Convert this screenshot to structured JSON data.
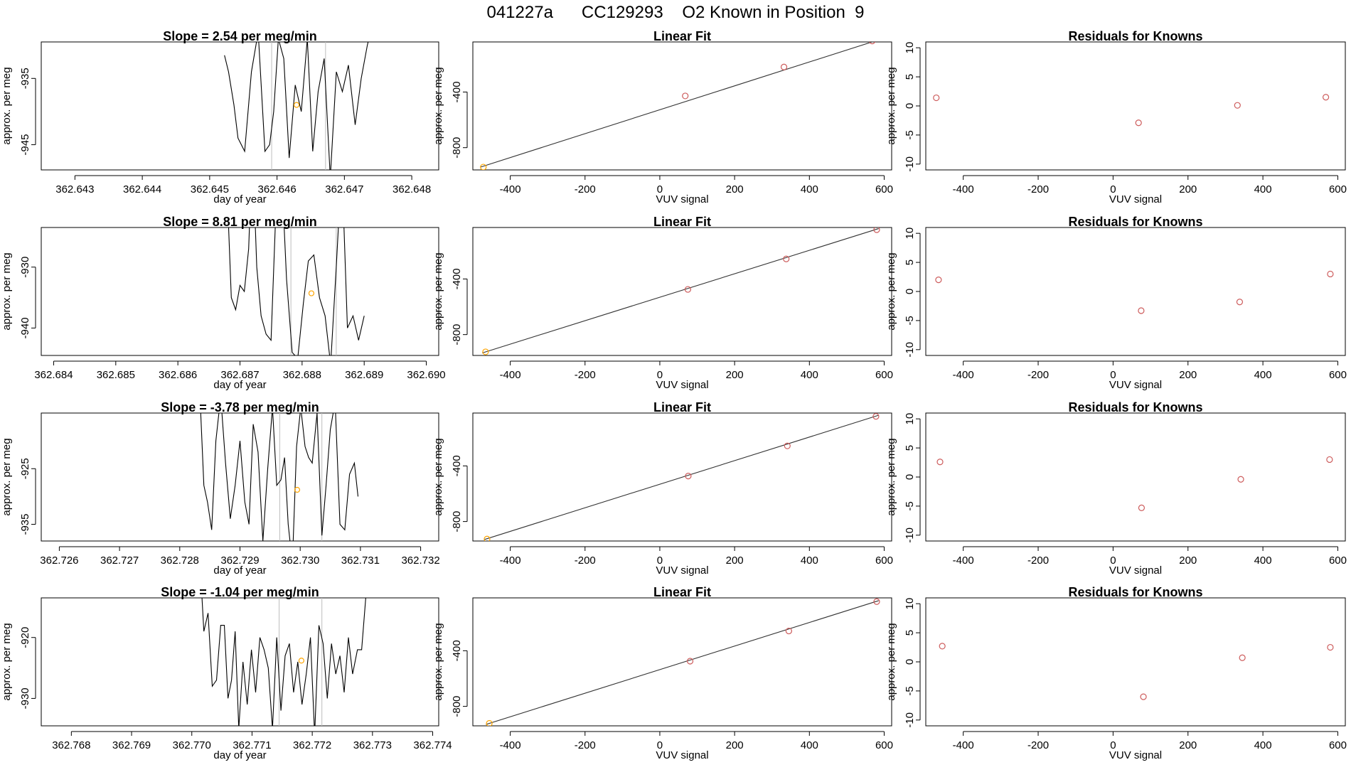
{
  "page_title": "041227a      CC129293    O2 Known in Position  9",
  "colors": {
    "trace": "#000000",
    "marker_orange": "#ffa500",
    "marker_red": "#cd5c5c",
    "fit_point": "#cd5c5c",
    "guide_line": "#bebebe",
    "fit_line": "#333333"
  },
  "chart_data": [
    {
      "row": 1,
      "time_panel": {
        "type": "line",
        "title": "Slope =  2.54  per meg/min",
        "xlabel": "day of year",
        "ylabel": "approx. per meg",
        "xlim": [
          362.6425,
          362.6484
        ],
        "ylim": [
          -948.8,
          -929.5
        ],
        "x_ticks": [
          362.643,
          362.644,
          362.645,
          362.646,
          362.647,
          362.648
        ],
        "x_tick_labels": [
          "362.643",
          "362.644",
          "362.645",
          "362.646",
          "362.647",
          "362.648"
        ],
        "y_ticks": [
          -935,
          -945
        ],
        "y_tick_labels": [
          "-935",
          "-945"
        ],
        "vlines": [
          362.64592,
          362.64672
        ],
        "marker": {
          "x": 362.64629,
          "y": -939
        },
        "series": {
          "x": [
            362.64522,
            362.64528,
            362.64536,
            362.64542,
            362.64552,
            362.64562,
            362.64572,
            362.64582,
            362.64589,
            362.64595,
            362.64602,
            362.6461,
            362.64618,
            362.64627,
            362.64636,
            362.64645,
            362.64653,
            362.64661,
            362.6467,
            362.64679,
            362.64688,
            362.64697,
            362.64706,
            362.64716,
            362.64725,
            362.64734,
            362.64741
          ],
          "y": [
            -931.5,
            -934,
            -939,
            -944,
            -946,
            -934,
            -928,
            -946,
            -945,
            -940,
            -929,
            -932,
            -947,
            -936,
            -940,
            -929,
            -946,
            -937,
            -932,
            -950,
            -934,
            -937,
            -933,
            -942,
            -935,
            -930,
            -927
          ]
        }
      },
      "fit_panel": {
        "type": "scatter",
        "title": "Linear Fit",
        "xlabel": "VUV signal",
        "ylabel": "approx. per meg",
        "xlim": [
          -500,
          620
        ],
        "ylim": [
          -960,
          -40
        ],
        "x_ticks": [
          -400,
          -200,
          0,
          200,
          400,
          600
        ],
        "x_tick_labels": [
          "-400",
          "-200",
          "0",
          "200",
          "400",
          "600"
        ],
        "y_ticks": [
          -400,
          -800
        ],
        "y_tick_labels": [
          "-400",
          "-800"
        ],
        "points": [
          {
            "x": -472,
            "y": -940,
            "color": "marker_orange"
          },
          {
            "x": 68,
            "y": -428,
            "color": "fit_point"
          },
          {
            "x": 332,
            "y": -220,
            "color": "fit_point"
          },
          {
            "x": 568,
            "y": -33,
            "color": "fit_point"
          }
        ],
        "fit_line": {
          "x": [
            -480,
            585
          ],
          "y": [
            -940,
            -25
          ]
        }
      },
      "resid_panel": {
        "type": "scatter",
        "title": "Residuals for Knowns",
        "xlabel": "VUV signal",
        "ylabel": "approx. per meg",
        "xlim": [
          -500,
          620
        ],
        "ylim": [
          -11,
          11
        ],
        "x_ticks": [
          -400,
          -200,
          0,
          200,
          400,
          600
        ],
        "x_tick_labels": [
          "-400",
          "-200",
          "0",
          "200",
          "400",
          "600"
        ],
        "y_ticks": [
          10,
          5,
          0,
          -5,
          -10
        ],
        "y_tick_labels": [
          "10",
          "5",
          "0",
          "-5",
          "-10"
        ],
        "points": [
          {
            "x": -472,
            "y": 1.4
          },
          {
            "x": 68,
            "y": -2.9
          },
          {
            "x": 332,
            "y": 0.1
          },
          {
            "x": 568,
            "y": 1.5
          }
        ]
      }
    },
    {
      "row": 2,
      "time_panel": {
        "type": "line",
        "title": "Slope =  8.81  per meg/min",
        "xlabel": "day of year",
        "ylabel": "approx. per meg",
        "xlim": [
          362.6838,
          362.6902
        ],
        "ylim": [
          -944.5,
          -923.5
        ],
        "x_ticks": [
          362.684,
          362.685,
          362.686,
          362.687,
          362.688,
          362.689,
          362.69
        ],
        "x_tick_labels": [
          "362.684",
          "362.685",
          "362.686",
          "362.687",
          "362.688",
          "362.689",
          "362.690"
        ],
        "y_ticks": [
          -930,
          -940
        ],
        "y_tick_labels": [
          "-930",
          "-940"
        ],
        "vlines": [
          362.68782,
          362.68855
        ],
        "marker": {
          "x": 362.68815,
          "y": -934.3
        },
        "series": {
          "x": [
            362.6868,
            362.68686,
            362.68693,
            362.687,
            362.68707,
            362.68714,
            362.6872,
            362.68727,
            362.68734,
            362.68742,
            362.6875,
            362.68758,
            362.68766,
            362.68775,
            362.68784,
            362.68793,
            362.68802,
            362.6881,
            362.68819,
            362.68828,
            362.68837,
            362.68846,
            362.68855,
            362.68864,
            362.68873,
            362.68882,
            362.68891,
            362.689
          ],
          "y": [
            -919,
            -935,
            -937,
            -933,
            -934,
            -927,
            -910,
            -930,
            -938,
            -941,
            -942,
            -920,
            -912,
            -932,
            -944,
            -945,
            -936,
            -929,
            -928,
            -935,
            -938,
            -946,
            -930,
            -913,
            -940,
            -938,
            -942,
            -938
          ]
        }
      },
      "fit_panel": {
        "type": "scatter",
        "title": "Linear Fit",
        "xlabel": "VUV signal",
        "ylabel": "approx. per meg",
        "xlim": [
          -500,
          620
        ],
        "ylim": [
          -950,
          -30
        ],
        "x_ticks": [
          -400,
          -200,
          0,
          200,
          400,
          600
        ],
        "x_tick_labels": [
          "-400",
          "-200",
          "0",
          "200",
          "400",
          "600"
        ],
        "y_ticks": [
          -400,
          -800
        ],
        "y_tick_labels": [
          "-400",
          "-800"
        ],
        "points": [
          {
            "x": -466,
            "y": -924,
            "color": "marker_orange"
          },
          {
            "x": 75,
            "y": -475,
            "color": "fit_point"
          },
          {
            "x": 338,
            "y": -256,
            "color": "fit_point"
          },
          {
            "x": 580,
            "y": -46,
            "color": "fit_point"
          }
        ],
        "fit_line": {
          "x": [
            -475,
            585
          ],
          "y": [
            -932,
            -38
          ]
        }
      },
      "resid_panel": {
        "type": "scatter",
        "title": "Residuals for Knowns",
        "xlabel": "VUV signal",
        "ylabel": "approx. per meg",
        "xlim": [
          -500,
          620
        ],
        "ylim": [
          -11,
          11
        ],
        "x_ticks": [
          -400,
          -200,
          0,
          200,
          400,
          600
        ],
        "x_tick_labels": [
          "-400",
          "-200",
          "0",
          "200",
          "400",
          "600"
        ],
        "y_ticks": [
          10,
          5,
          0,
          -5,
          -10
        ],
        "y_tick_labels": [
          "10",
          "5",
          "0",
          "-5",
          "-10"
        ],
        "points": [
          {
            "x": -466,
            "y": 2.0
          },
          {
            "x": 75,
            "y": -3.3
          },
          {
            "x": 338,
            "y": -1.8
          },
          {
            "x": 580,
            "y": 3.0
          }
        ]
      }
    },
    {
      "row": 3,
      "time_panel": {
        "type": "line",
        "title": "Slope =  -3.78  per meg/min",
        "xlabel": "day of year",
        "ylabel": "approx. per meg",
        "xlim": [
          362.7257,
          362.7323
        ],
        "ylim": [
          -938,
          -915
        ],
        "x_ticks": [
          362.726,
          362.727,
          362.728,
          362.729,
          362.73,
          362.731,
          362.732
        ],
        "x_tick_labels": [
          "362.726",
          "362.727",
          "362.728",
          "362.729",
          "362.730",
          "362.731",
          "362.732"
        ],
        "y_ticks": [
          -925,
          -935
        ],
        "y_tick_labels": [
          "-925",
          "-935"
        ],
        "vlines": [
          362.72966,
          362.73036
        ],
        "marker": {
          "x": 362.72995,
          "y": -928.8
        },
        "series": {
          "x": [
            362.72832,
            362.7284,
            362.72846,
            362.72853,
            362.7286,
            362.72868,
            362.72876,
            362.72884,
            362.72892,
            362.729,
            362.72908,
            362.72915,
            362.72922,
            362.7293,
            362.72938,
            362.72946,
            362.72954,
            362.72961,
            362.72968,
            362.72974,
            362.7298,
            362.72987,
            362.72994,
            362.73001,
            362.73008,
            362.73014,
            362.7302,
            362.73028,
            362.73036,
            362.73043,
            362.7305,
            362.73058,
            362.73066,
            362.73074,
            362.73082,
            362.7309,
            362.73096
          ],
          "y": [
            -908,
            -928,
            -931,
            -936,
            -920,
            -912,
            -924,
            -934,
            -928,
            -920,
            -931,
            -935,
            -917,
            -922,
            -938,
            -925,
            -914,
            -928,
            -927,
            -923,
            -935,
            -942,
            -921,
            -914,
            -921,
            -923,
            -924,
            -915,
            -937,
            -928,
            -918,
            -913,
            -935,
            -936,
            -926,
            -924,
            -930
          ]
        }
      },
      "fit_panel": {
        "type": "scatter",
        "title": "Linear Fit",
        "xlabel": "VUV signal",
        "ylabel": "approx. per meg",
        "xlim": [
          -500,
          620
        ],
        "ylim": [
          -940,
          -20
        ],
        "x_ticks": [
          -400,
          -200,
          0,
          200,
          400,
          600
        ],
        "x_tick_labels": [
          "-400",
          "-200",
          "0",
          "200",
          "400",
          "600"
        ],
        "y_ticks": [
          -400,
          -800
        ],
        "y_tick_labels": [
          "-400",
          "-800"
        ],
        "points": [
          {
            "x": -462,
            "y": -926,
            "color": "marker_orange"
          },
          {
            "x": 76,
            "y": -473,
            "color": "fit_point"
          },
          {
            "x": 341,
            "y": -256,
            "color": "fit_point"
          },
          {
            "x": 578,
            "y": -44,
            "color": "fit_point"
          }
        ],
        "fit_line": {
          "x": [
            -470,
            585
          ],
          "y": [
            -930,
            -36
          ]
        }
      },
      "resid_panel": {
        "type": "scatter",
        "title": "Residuals for Knowns",
        "xlabel": "VUV signal",
        "ylabel": "approx. per meg",
        "xlim": [
          -500,
          620
        ],
        "ylim": [
          -11,
          11
        ],
        "x_ticks": [
          -400,
          -200,
          0,
          200,
          400,
          600
        ],
        "x_tick_labels": [
          "-400",
          "-200",
          "0",
          "200",
          "400",
          "600"
        ],
        "y_ticks": [
          10,
          5,
          0,
          -5,
          -10
        ],
        "y_tick_labels": [
          "10",
          "5",
          "0",
          "-5",
          "-10"
        ],
        "points": [
          {
            "x": -462,
            "y": 2.6
          },
          {
            "x": 76,
            "y": -5.3
          },
          {
            "x": 341,
            "y": -0.4
          },
          {
            "x": 578,
            "y": 3.0
          }
        ]
      }
    },
    {
      "row": 4,
      "time_panel": {
        "type": "line",
        "title": "Slope =  -1.04  per meg/min",
        "xlabel": "day of year",
        "ylabel": "approx. per meg",
        "xlim": [
          362.7675,
          362.7741
        ],
        "ylim": [
          -934.5,
          -913.5
        ],
        "x_ticks": [
          362.768,
          362.769,
          362.77,
          362.771,
          362.772,
          362.773,
          362.774
        ],
        "x_tick_labels": [
          "362.768",
          "362.769",
          "362.770",
          "362.771",
          "362.772",
          "362.773",
          "362.774"
        ],
        "y_ticks": [
          -920,
          -930
        ],
        "y_tick_labels": [
          "-920",
          "-930"
        ],
        "vlines": [
          362.77145,
          362.77216
        ],
        "marker": {
          "x": 362.77182,
          "y": -923.8
        },
        "series": {
          "x": [
            362.77015,
            362.7702,
            362.77027,
            362.77034,
            362.77041,
            362.77048,
            362.77054,
            362.7706,
            362.77066,
            362.77072,
            362.77078,
            362.77085,
            362.77092,
            362.77099,
            362.77106,
            362.77113,
            362.7712,
            362.77127,
            362.77134,
            362.77141,
            362.77148,
            362.77155,
            362.77162,
            362.77169,
            362.77176,
            362.77183,
            362.7719,
            362.77197,
            362.77204,
            362.77211,
            362.77218,
            362.77225,
            362.77232,
            362.77239,
            362.77246,
            362.77253,
            362.7726,
            362.77267,
            362.77275,
            362.77282,
            362.7729
          ],
          "y": [
            -910,
            -919,
            -916,
            -928,
            -927,
            -918,
            -918,
            -930,
            -927,
            -919,
            -935,
            -924,
            -931,
            -922,
            -929,
            -920,
            -922,
            -925,
            -935,
            -920,
            -932,
            -923,
            -921,
            -929,
            -924,
            -931,
            -926,
            -920,
            -936,
            -918,
            -921,
            -930,
            -921,
            -926,
            -923,
            -929,
            -920,
            -926,
            -922,
            -922,
            -912
          ]
        }
      },
      "fit_panel": {
        "type": "scatter",
        "title": "Linear Fit",
        "xlabel": "VUV signal",
        "ylabel": "approx. per meg",
        "xlim": [
          -500,
          620
        ],
        "ylim": [
          -940,
          -20
        ],
        "x_ticks": [
          -400,
          -200,
          0,
          200,
          400,
          600
        ],
        "x_tick_labels": [
          "-400",
          "-200",
          "0",
          "200",
          "400",
          "600"
        ],
        "y_ticks": [
          -400,
          -800
        ],
        "y_tick_labels": [
          "-400",
          "-800"
        ],
        "points": [
          {
            "x": -456,
            "y": -922,
            "color": "marker_orange"
          },
          {
            "x": 81,
            "y": -475,
            "color": "fit_point"
          },
          {
            "x": 345,
            "y": -258,
            "color": "fit_point"
          },
          {
            "x": 580,
            "y": -47,
            "color": "fit_point"
          }
        ],
        "fit_line": {
          "x": [
            -465,
            585
          ],
          "y": [
            -930,
            -40
          ]
        }
      },
      "resid_panel": {
        "type": "scatter",
        "title": "Residuals for Knowns",
        "xlabel": "VUV signal",
        "ylabel": "approx. per meg",
        "xlim": [
          -500,
          620
        ],
        "ylim": [
          -11,
          11
        ],
        "x_ticks": [
          -400,
          -200,
          0,
          200,
          400,
          600
        ],
        "x_tick_labels": [
          "-400",
          "-200",
          "0",
          "200",
          "400",
          "600"
        ],
        "y_ticks": [
          10,
          5,
          0,
          -5,
          -10
        ],
        "y_tick_labels": [
          "10",
          "5",
          "0",
          "-5",
          "-10"
        ],
        "points": [
          {
            "x": -456,
            "y": 2.7
          },
          {
            "x": 81,
            "y": -6.0
          },
          {
            "x": 345,
            "y": 0.7
          },
          {
            "x": 580,
            "y": 2.5
          }
        ]
      }
    }
  ]
}
